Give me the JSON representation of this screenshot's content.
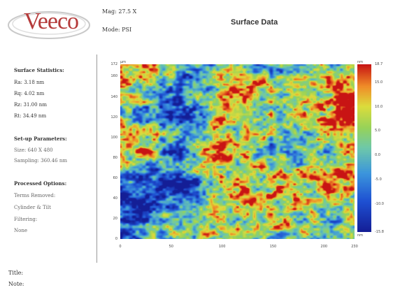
{
  "header": {
    "brand": "Veeco",
    "mag": "Mag: 27.5 X",
    "mode": "Mode: PSI",
    "title": "Surface Data"
  },
  "sidebar": {
    "stats_heading": "Surface Statistics:",
    "stats": [
      "Ra: 3.18 nm",
      "Rq: 4.02 nm",
      "Rz: 31.00 nm",
      "Rt: 34.49 nm"
    ],
    "setup_heading": "Set-up Parameters:",
    "setup": [
      "Size: 640 X 480",
      "Sampling: 360.46 nm"
    ],
    "processed_heading": "Processed Options:",
    "processed": [
      "Terms Removed:",
      "Cylinder & Tilt",
      "Filtering:",
      "None"
    ]
  },
  "plot": {
    "y_unit": "µm",
    "x_unit": "µm",
    "y_ticks": [
      "172",
      "160",
      "140",
      "120",
      "100",
      "80",
      "60",
      "40",
      "20",
      "0"
    ],
    "x_ticks": [
      "0",
      "50",
      "100",
      "150",
      "200",
      "230"
    ],
    "x_range": [
      0,
      230
    ],
    "y_range": [
      0,
      172
    ]
  },
  "colorbar": {
    "top_unit": "nm",
    "bottom_unit": "nm",
    "ticks": [
      "18.7",
      "15.0",
      "10.0",
      "5.0",
      "0.0",
      "-5.0",
      "-10.0",
      "-15.8"
    ],
    "range": [
      -15.8,
      18.7
    ]
  },
  "footer": {
    "title_label": "Title:",
    "note_label": "Note:"
  },
  "colors": {
    "brand": "#b53a3a",
    "map_low": "#1a2fb0",
    "map_mid": "#7fcf6a",
    "map_high": "#c21a1a"
  }
}
